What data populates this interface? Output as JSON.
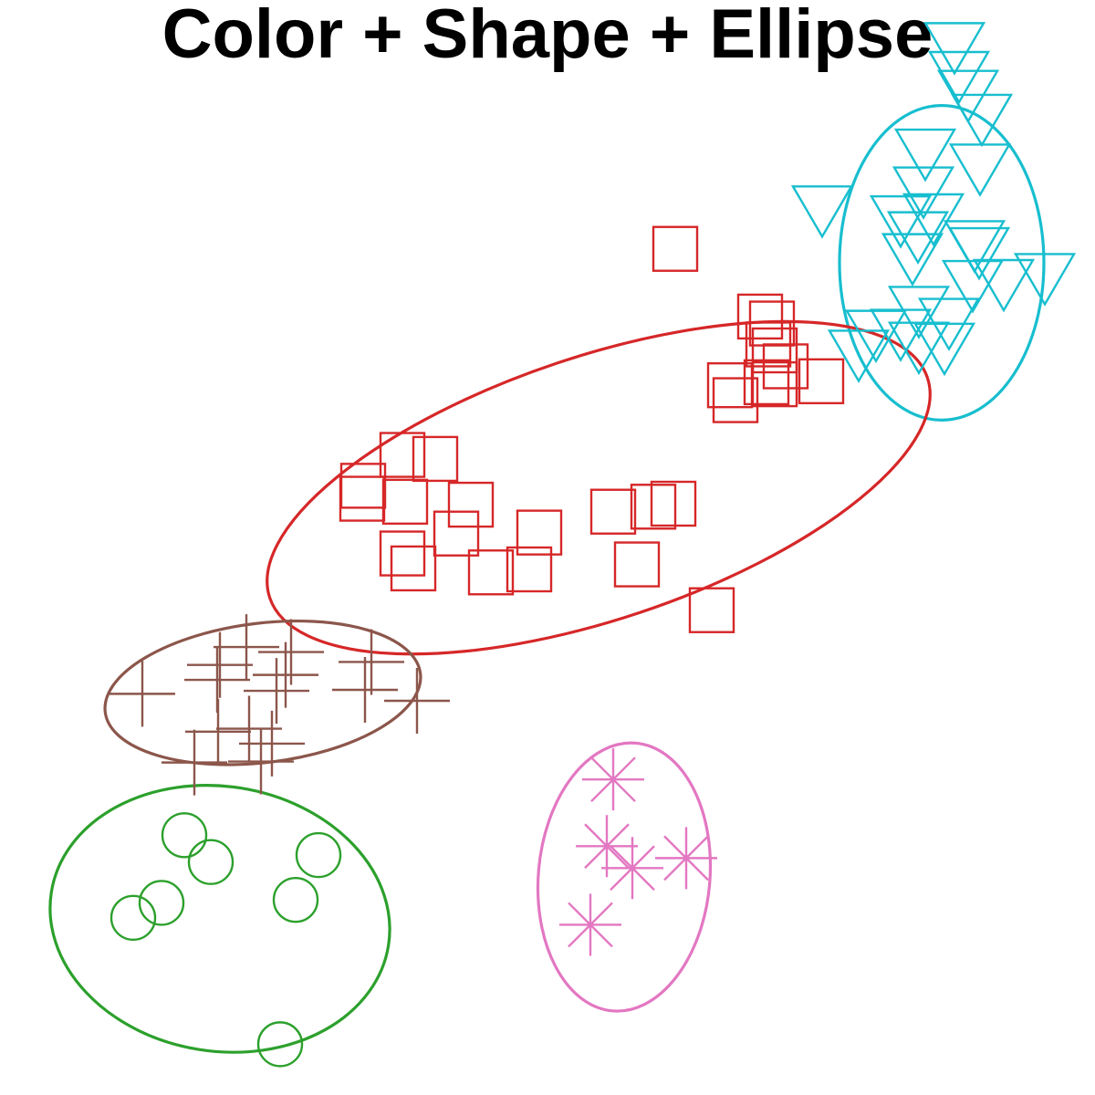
{
  "chart_data": {
    "type": "scatter",
    "title": "Color + Shape + Ellipse",
    "xlabel": "",
    "ylabel": "",
    "grid": false,
    "xlim": [
      0,
      12
    ],
    "ylim": [
      0,
      11
    ],
    "series": [
      {
        "marker": "triangle-down",
        "color": "#17becf",
        "points": [
          [
            10.46,
            10.52
          ],
          [
            10.51,
            10.23
          ],
          [
            10.61,
            10.04
          ],
          [
            10.76,
            9.8
          ],
          [
            10.14,
            9.45
          ],
          [
            10.74,
            9.3
          ],
          [
            10.12,
            9.07
          ],
          [
            9.01,
            8.88
          ],
          [
            9.87,
            8.78
          ],
          [
            10.23,
            8.8
          ],
          [
            10.06,
            8.62
          ],
          [
            10.68,
            8.53
          ],
          [
            10.73,
            8.46
          ],
          [
            10.0,
            8.4
          ],
          [
            11.45,
            8.2
          ],
          [
            11.0,
            8.14
          ],
          [
            10.66,
            8.13
          ],
          [
            10.07,
            7.87
          ],
          [
            10.4,
            7.75
          ],
          [
            9.6,
            7.63
          ],
          [
            9.87,
            7.64
          ],
          [
            10.07,
            7.51
          ],
          [
            10.35,
            7.5
          ],
          [
            9.41,
            7.43
          ]
        ]
      },
      {
        "marker": "square",
        "color": "#d62728",
        "points": [
          [
            7.4,
            8.5
          ],
          [
            8.33,
            7.82
          ],
          [
            8.46,
            7.75
          ],
          [
            8.42,
            7.54
          ],
          [
            8.49,
            7.48
          ],
          [
            8.61,
            7.32
          ],
          [
            8.0,
            7.13
          ],
          [
            9.0,
            7.17
          ],
          [
            8.49,
            7.14
          ],
          [
            8.4,
            7.16
          ],
          [
            8.06,
            6.98
          ],
          [
            4.41,
            6.43
          ],
          [
            4.77,
            6.39
          ],
          [
            3.98,
            6.12
          ],
          [
            3.97,
            5.99
          ],
          [
            4.44,
            5.96
          ],
          [
            5.16,
            5.93
          ],
          [
            6.72,
            5.86
          ],
          [
            7.16,
            5.91
          ],
          [
            7.38,
            5.94
          ],
          [
            5.0,
            5.64
          ],
          [
            5.91,
            5.65
          ],
          [
            4.41,
            5.44
          ],
          [
            6.98,
            5.33
          ],
          [
            4.53,
            5.29
          ],
          [
            5.8,
            5.28
          ],
          [
            5.38,
            5.25
          ],
          [
            7.8,
            4.87
          ]
        ]
      },
      {
        "marker": "plus",
        "color": "#8c564b",
        "points": [
          [
            2.7,
            4.5
          ],
          [
            3.19,
            4.45
          ],
          [
            2.41,
            4.32
          ],
          [
            4.07,
            4.35
          ],
          [
            3.13,
            4.22
          ],
          [
            3.03,
            4.06
          ],
          [
            1.56,
            4.03
          ],
          [
            2.38,
            4.17
          ],
          [
            4.0,
            4.07
          ],
          [
            4.57,
            3.96
          ],
          [
            2.73,
            3.68
          ],
          [
            2.39,
            3.65
          ],
          [
            2.98,
            3.53
          ],
          [
            2.13,
            3.34
          ],
          [
            2.86,
            3.35
          ]
        ]
      },
      {
        "marker": "circle",
        "color": "#2ca02c",
        "points": [
          [
            2.02,
            2.61
          ],
          [
            3.49,
            2.41
          ],
          [
            2.31,
            2.34
          ],
          [
            1.77,
            1.93
          ],
          [
            3.24,
            1.96
          ],
          [
            1.46,
            1.78
          ],
          [
            3.07,
            0.51
          ]
        ]
      },
      {
        "marker": "asterisk",
        "color": "#e377c2",
        "points": [
          [
            6.72,
            3.17
          ],
          [
            6.65,
            2.5
          ],
          [
            7.52,
            2.38
          ],
          [
            6.93,
            2.28
          ],
          [
            6.47,
            1.71
          ]
        ]
      }
    ],
    "ellipses": [
      {
        "color": "#17becf",
        "cx": 10.32,
        "cy": 8.36,
        "rx": 1.12,
        "ry": 1.58,
        "angle": 0
      },
      {
        "color": "#d62728",
        "cx": 6.56,
        "cy": 6.1,
        "rx": 3.8,
        "ry": 1.32,
        "angle": -18.5
      },
      {
        "color": "#8c564b",
        "cx": 2.88,
        "cy": 4.04,
        "rx": 1.74,
        "ry": 0.7,
        "angle": -7
      },
      {
        "color": "#2ca02c",
        "cx": 2.41,
        "cy": 1.77,
        "rx": 1.87,
        "ry": 1.33,
        "angle": 9
      },
      {
        "color": "#e377c2",
        "cx": 6.84,
        "cy": 2.19,
        "rx": 0.94,
        "ry": 1.35,
        "angle": 5
      }
    ]
  }
}
